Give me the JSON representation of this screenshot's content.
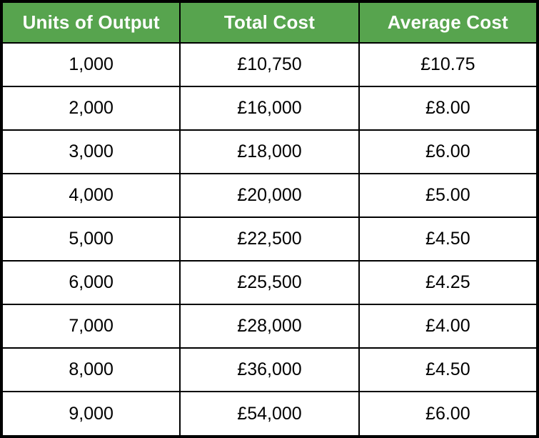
{
  "chart_data": {
    "type": "table",
    "title": "",
    "columns": [
      "Units of Output",
      "Total Cost",
      "Average Cost"
    ],
    "rows": [
      [
        "1,000",
        "£10,750",
        "£10.75"
      ],
      [
        "2,000",
        "£16,000",
        "£8.00"
      ],
      [
        "3,000",
        "£18,000",
        "£6.00"
      ],
      [
        "4,000",
        "£20,000",
        "£5.00"
      ],
      [
        "5,000",
        "£22,500",
        "£4.50"
      ],
      [
        "6,000",
        "£25,500",
        "£4.25"
      ],
      [
        "7,000",
        "£28,000",
        "£4.00"
      ],
      [
        "8,000",
        "£36,000",
        "£4.50"
      ],
      [
        "9,000",
        "£54,000",
        "£6.00"
      ]
    ],
    "colors": {
      "header_bg": "#57A44E",
      "header_text": "#FFFFFF",
      "row_bg": "#FFFFFF",
      "cell_text": "#000000",
      "border": "#000000"
    },
    "layout": {
      "grid": true,
      "column_count": 3,
      "row_count": 9
    }
  }
}
